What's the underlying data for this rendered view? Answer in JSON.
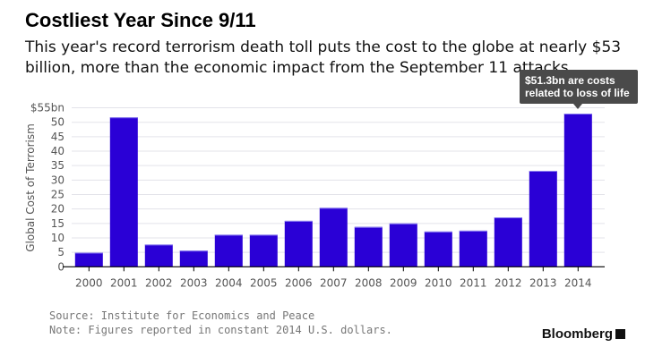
{
  "chart_data": {
    "type": "bar",
    "title": "Costliest Year Since 9/11",
    "subtitle": "This year's record terrorism death toll puts the cost to the globe at nearly $53 billion, more than the economic impact from the September 11 attacks",
    "xlabel": "",
    "ylabel": "Global Cost of Terrorism",
    "ylim": [
      0,
      55
    ],
    "yticks": [
      "0",
      "5",
      "10",
      "15",
      "20",
      "25",
      "30",
      "35",
      "40",
      "45",
      "50",
      "$55bn"
    ],
    "grid": true,
    "categories": [
      "2000",
      "2001",
      "2002",
      "2003",
      "2004",
      "2005",
      "2006",
      "2007",
      "2008",
      "2009",
      "2010",
      "2011",
      "2012",
      "2013",
      "2014"
    ],
    "values": [
      4.9,
      51.7,
      7.7,
      5.6,
      11.1,
      11.1,
      15.9,
      20.4,
      13.8,
      15.0,
      12.2,
      12.5,
      17.1,
      33.2,
      53.0
    ],
    "bar_color": "#2a00d6",
    "annotation": "$51.3bn are costs related to loss of life"
  },
  "footer": {
    "source": "Source: Institute for Economics and Peace",
    "note": "Note: Figures reported in constant 2014 U.S. dollars.",
    "logo": "Bloomberg"
  }
}
